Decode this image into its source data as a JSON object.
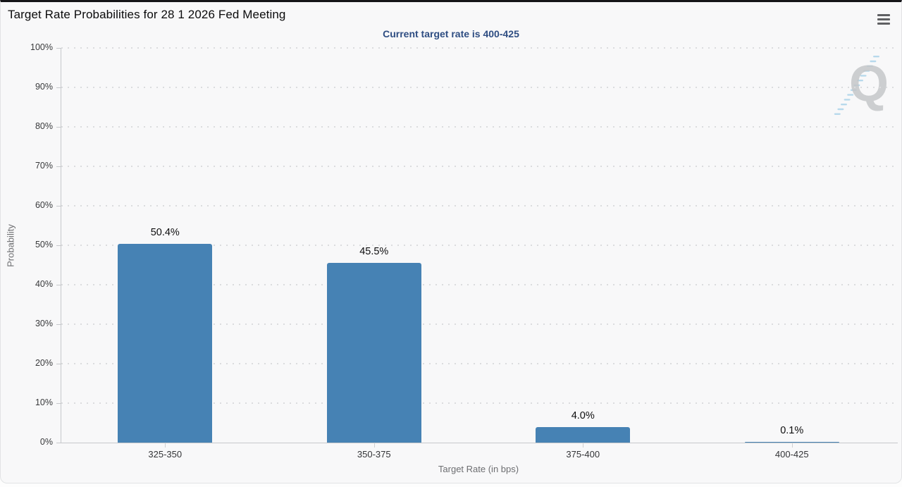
{
  "header": {
    "title": "Target Rate Probabilities for 28 1 2026 Fed Meeting"
  },
  "subtitle": "Current target rate is 400-425",
  "watermark": {
    "letter": "Q"
  },
  "colors": {
    "bar": "#4682b4",
    "subtitle": "#2e4d82",
    "hatch": "#b7d9ec"
  },
  "chart_data": {
    "type": "bar",
    "title": "Target Rate Probabilities for 28 1 2026 Fed Meeting",
    "subtitle": "Current target rate is 400-425",
    "categories": [
      "325-350",
      "350-375",
      "375-400",
      "400-425"
    ],
    "values": [
      50.4,
      45.5,
      4.0,
      0.1
    ],
    "value_labels": [
      "50.4%",
      "45.5%",
      "4.0%",
      "0.1%"
    ],
    "xlabel": "Target Rate (in bps)",
    "ylabel": "Probability",
    "ylim": [
      0,
      100
    ],
    "ytick_step": 10,
    "ytick_suffix": "%",
    "grid": "dotted-horizontal",
    "legend": "none"
  }
}
